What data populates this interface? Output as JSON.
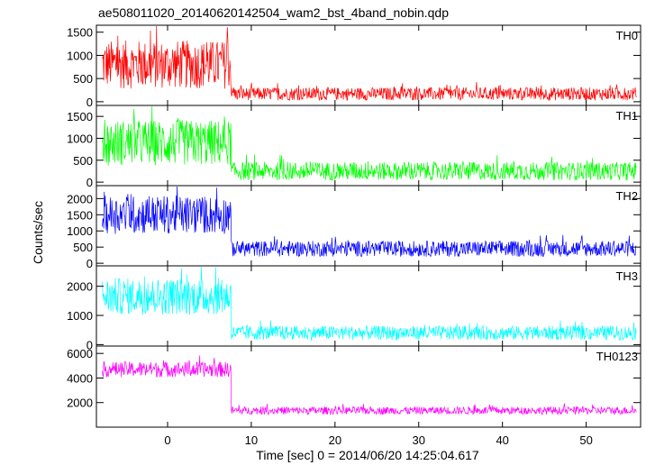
{
  "chart_data": {
    "type": "line",
    "title": "ae508011020_20140620142504_wam2_bst_4band_nobin.qdp",
    "xlabel": "Time [sec] 0 = 2014/06/20 14:25:04.617",
    "ylabel": "Counts/sec",
    "xlim": [
      -8.5,
      56.5
    ],
    "x_ticks": [
      0,
      10,
      20,
      30,
      40,
      50
    ],
    "burst_end_time": 7.6,
    "data_end_time": 56,
    "grid": false,
    "panels": [
      {
        "label": "TH0",
        "color": "#ff0000",
        "ylim": [
          -80,
          1650
        ],
        "y_ticks": [
          0,
          500,
          1000,
          1500
        ],
        "before_mean": 800,
        "before_spread": 750,
        "after_mean": 170,
        "after_spread": 200
      },
      {
        "label": "TH1",
        "color": "#00ff00",
        "ylim": [
          -80,
          1750
        ],
        "y_ticks": [
          0,
          500,
          1000,
          1500
        ],
        "before_mean": 900,
        "before_spread": 750,
        "after_mean": 250,
        "after_spread": 300
      },
      {
        "label": "TH2",
        "color": "#0000ff",
        "ylim": [
          -80,
          2400
        ],
        "y_ticks": [
          0,
          500,
          1000,
          1500,
          2000
        ],
        "before_mean": 1500,
        "before_spread": 850,
        "after_mean": 450,
        "after_spread": 350
      },
      {
        "label": "TH3",
        "color": "#00ffff",
        "ylim": [
          -50,
          2700
        ],
        "y_ticks": [
          0,
          1000,
          2000
        ],
        "before_mean": 1650,
        "before_spread": 900,
        "after_mean": 400,
        "after_spread": 350
      },
      {
        "label": "TH0123",
        "color": "#ff00ff",
        "ylim": [
          0,
          6600
        ],
        "y_ticks": [
          2000,
          4000,
          6000
        ],
        "before_mean": 4700,
        "before_spread": 900,
        "after_mean": 1350,
        "after_spread": 450
      }
    ]
  }
}
